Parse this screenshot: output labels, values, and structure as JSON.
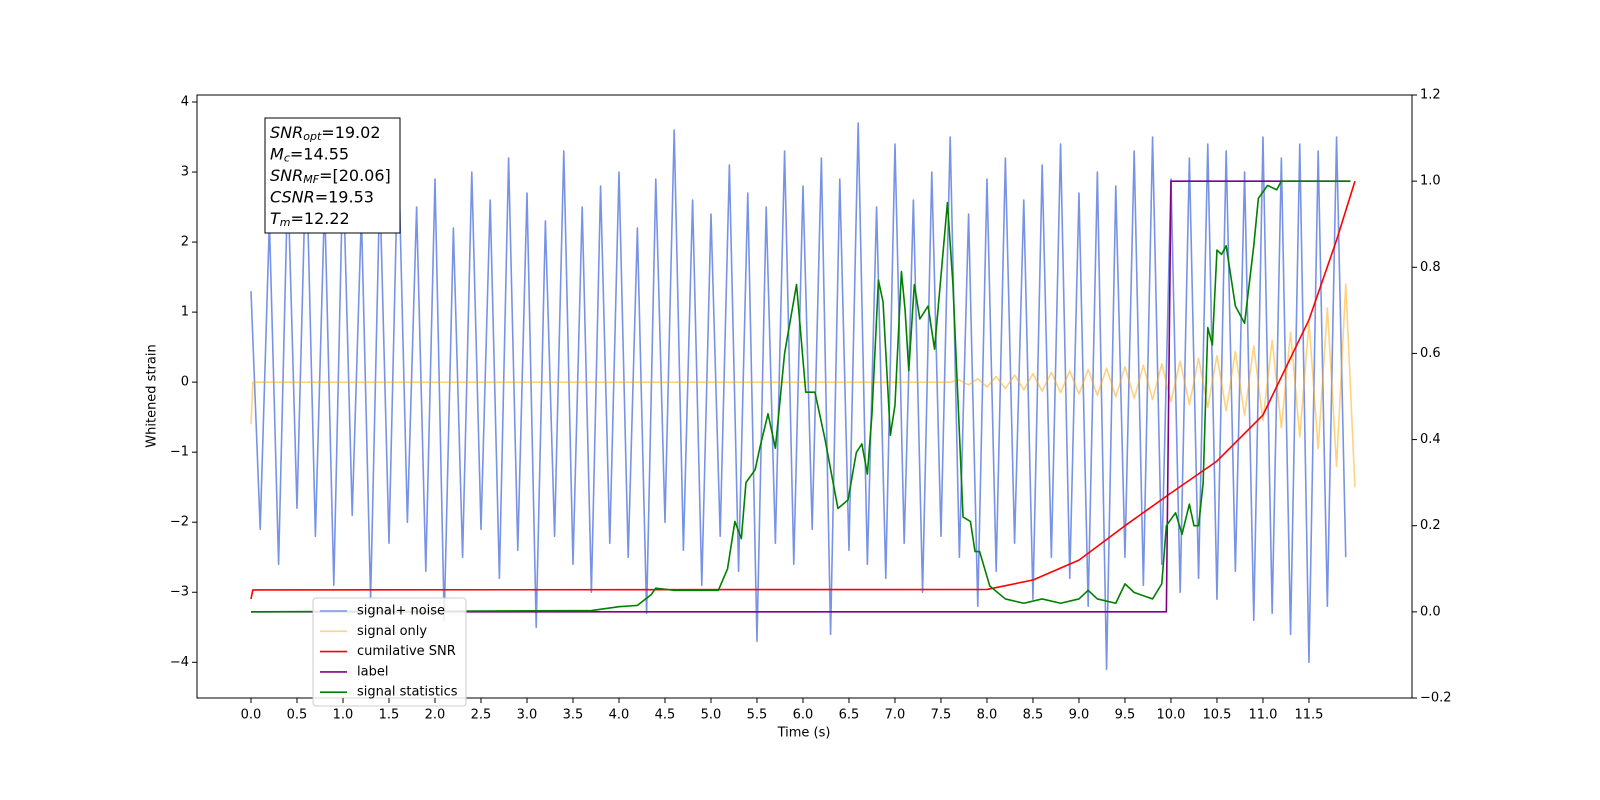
{
  "chart_data": {
    "type": "line",
    "x_label": "Time (s)",
    "y_label": "Whitened strain",
    "xlim": [
      -0.587,
      12.62
    ],
    "ylim": [
      -4.51,
      4.1
    ],
    "y2lim": [
      -0.2,
      1.2
    ],
    "xticks": [
      {
        "value": 0.0,
        "label": "0.0"
      },
      0.5,
      {
        "value": 1.0,
        "label": "1.0"
      },
      1.5,
      {
        "value": 2.0,
        "label": "2.0"
      },
      2.5,
      {
        "value": 3.0,
        "label": "3.0"
      },
      3.5,
      {
        "value": 4.0,
        "label": "4.0"
      },
      4.5,
      {
        "value": 5.0,
        "label": "5.0"
      },
      5.5,
      {
        "value": 6.0,
        "label": "6.0"
      },
      6.5,
      {
        "value": 7.0,
        "label": "7.0"
      },
      7.5,
      {
        "value": 8.0,
        "label": "8.0"
      },
      8.5,
      {
        "value": 9.0,
        "label": "9.0"
      },
      9.5,
      {
        "value": 10.0,
        "label": "10.0"
      },
      10.5,
      {
        "value": 11.0,
        "label": "11.0"
      },
      11.5
    ],
    "yticks": [
      {
        "value": -4,
        "label": "−4"
      },
      {
        "value": -3,
        "label": "−3"
      },
      {
        "value": -2,
        "label": "−2"
      },
      {
        "value": -1,
        "label": "−1"
      },
      0,
      1,
      2,
      3,
      4
    ],
    "y2ticks": [
      {
        "value": -0.2,
        "label": "−0.2"
      },
      {
        "value": 0.0,
        "label": "0.0"
      },
      0.2,
      0.4,
      0.6,
      0.8,
      {
        "value": 1.0,
        "label": "1.0"
      },
      1.2
    ],
    "annotations": [
      {
        "text": "SNR",
        "sub": "opt",
        "value": "=19.02"
      },
      {
        "text": "M",
        "sub": "c",
        "value": "=14.55"
      },
      {
        "text": "SNR",
        "sub": "MF",
        "value": "=[20.06]"
      },
      {
        "text": "CSNR",
        "sub": "",
        "value": "=19.53"
      },
      {
        "text": "T",
        "sub": "m",
        "value": "=12.22"
      }
    ],
    "series": [
      {
        "name": "signal+ noise",
        "color": "#7893e6",
        "x": [
          0.0,
          0.1,
          0.2,
          0.3,
          0.4,
          0.5,
          0.6,
          0.7,
          0.8,
          0.9,
          1.0,
          1.1,
          1.2,
          1.3,
          1.4,
          1.5,
          1.6,
          1.7,
          1.8,
          1.9,
          2.0,
          2.1,
          2.2,
          2.3,
          2.4,
          2.5,
          2.6,
          2.7,
          2.8,
          2.9,
          3.0,
          3.1,
          3.2,
          3.3,
          3.4,
          3.5,
          3.6,
          3.7,
          3.8,
          3.9,
          4.0,
          4.1,
          4.2,
          4.3,
          4.4,
          4.5,
          4.6,
          4.7,
          4.8,
          4.9,
          5.0,
          5.1,
          5.2,
          5.3,
          5.4,
          5.5,
          5.6,
          5.7,
          5.8,
          5.9,
          6.0,
          6.1,
          6.2,
          6.3,
          6.4,
          6.5,
          6.6,
          6.7,
          6.8,
          6.9,
          7.0,
          7.1,
          7.2,
          7.3,
          7.4,
          7.5,
          7.6,
          7.7,
          7.8,
          7.9,
          8.0,
          8.1,
          8.2,
          8.3,
          8.4,
          8.5,
          8.6,
          8.7,
          8.8,
          8.9,
          9.0,
          9.1,
          9.2,
          9.3,
          9.4,
          9.5,
          9.6,
          9.7,
          9.8,
          9.9,
          10.0,
          10.1,
          10.2,
          10.3,
          10.4,
          10.5,
          10.6,
          10.7,
          10.8,
          10.9,
          11.0,
          11.1,
          11.2,
          11.3,
          11.4,
          11.5,
          11.6,
          11.7,
          11.8,
          11.9
        ],
        "values": [
          1.3,
          -2.1,
          2.3,
          -2.6,
          2.9,
          -1.8,
          3.3,
          -2.2,
          2.6,
          -2.9,
          3.1,
          -1.9,
          2.4,
          -3.1,
          2.8,
          -2.3,
          3.4,
          -2.0,
          2.5,
          -2.7,
          2.9,
          -3.4,
          2.2,
          -2.5,
          3.0,
          -2.1,
          2.6,
          -2.8,
          3.2,
          -2.4,
          2.7,
          -3.5,
          2.3,
          -2.2,
          3.3,
          -2.6,
          2.5,
          -3.0,
          2.8,
          -2.3,
          3.0,
          -2.5,
          2.2,
          -3.3,
          2.9,
          -2.0,
          3.6,
          -2.4,
          2.6,
          -2.9,
          2.4,
          -2.2,
          3.1,
          -2.7,
          2.7,
          -3.7,
          2.5,
          -2.3,
          3.3,
          -2.6,
          2.8,
          -2.1,
          3.2,
          -3.6,
          2.9,
          -2.4,
          3.7,
          -2.6,
          2.5,
          -2.8,
          3.4,
          -2.3,
          2.6,
          -3.0,
          3.0,
          -2.2,
          3.5,
          -2.5,
          2.4,
          -3.2,
          2.9,
          -2.7,
          3.2,
          -2.3,
          2.6,
          -3.1,
          3.1,
          -2.5,
          3.4,
          -2.8,
          2.7,
          -3.2,
          3.0,
          -4.1,
          2.8,
          -2.5,
          3.3,
          -2.9,
          3.5,
          -2.6,
          2.9,
          -3.0,
          3.2,
          -2.8,
          3.4,
          -3.1,
          3.3,
          -2.7,
          3.0,
          -3.4,
          3.5,
          -3.3,
          3.2,
          -3.6,
          3.4,
          -4.0,
          3.3,
          -3.2,
          3.5,
          -2.5
        ]
      },
      {
        "name": "signal only",
        "color": "#ffa500",
        "x": [
          0.0,
          0.02,
          7.6,
          7.7,
          7.8,
          7.9,
          8.0,
          8.1,
          8.2,
          8.3,
          8.4,
          8.5,
          8.6,
          8.7,
          8.8,
          8.9,
          9.0,
          9.1,
          9.2,
          9.3,
          9.4,
          9.5,
          9.6,
          9.7,
          9.8,
          9.9,
          10.0,
          10.1,
          10.2,
          10.3,
          10.4,
          10.5,
          10.6,
          10.7,
          10.8,
          10.9,
          11.0,
          11.1,
          11.2,
          11.3,
          11.4,
          11.5,
          11.6,
          11.7,
          11.8,
          11.9,
          12.0
        ],
        "values": [
          -0.6,
          0,
          0,
          0.03,
          -0.04,
          0.05,
          -0.07,
          0.08,
          -0.09,
          0.1,
          -0.11,
          0.12,
          -0.13,
          0.14,
          -0.15,
          0.16,
          -0.17,
          0.18,
          -0.19,
          0.2,
          -0.21,
          0.22,
          -0.23,
          0.24,
          -0.25,
          0.26,
          -0.28,
          0.3,
          -0.32,
          0.34,
          -0.36,
          0.38,
          -0.41,
          0.44,
          -0.48,
          0.52,
          -0.55,
          0.6,
          -0.65,
          0.71,
          -0.78,
          0.85,
          -0.95,
          1.06,
          -1.2,
          1.4,
          -1.5
        ]
      },
      {
        "name": "cumilative SNR",
        "color": "#ff0000",
        "axis": "y2",
        "x": [
          0.0,
          0.02,
          8.0,
          8.5,
          9.0,
          9.5,
          10.0,
          10.5,
          11.0,
          11.5,
          11.8,
          12.0
        ],
        "values": [
          0.03,
          0.051,
          0.052,
          0.074,
          0.12,
          0.2,
          0.276,
          0.35,
          0.457,
          0.678,
          0.863,
          1.0
        ]
      },
      {
        "name": "label",
        "color": "#800080",
        "axis": "y2",
        "x": [
          0.0,
          9.95,
          10.0,
          11.95
        ],
        "values": [
          0,
          0,
          1,
          1
        ]
      },
      {
        "name": "signal statistics",
        "color": "#008000",
        "axis": "y2",
        "x": [
          0.0,
          3.7,
          4.0,
          4.2,
          4.35,
          4.4,
          4.6,
          4.88,
          5.08,
          5.18,
          5.26,
          5.33,
          5.38,
          5.48,
          5.53,
          5.62,
          5.7,
          5.8,
          5.93,
          6.03,
          6.13,
          6.24,
          6.38,
          6.49,
          6.58,
          6.64,
          6.7,
          6.75,
          6.82,
          6.87,
          6.95,
          7.0,
          7.07,
          7.11,
          7.15,
          7.21,
          7.27,
          7.36,
          7.43,
          7.57,
          7.63,
          7.74,
          7.82,
          7.87,
          7.92,
          8.03,
          8.2,
          8.4,
          8.6,
          8.8,
          9.0,
          9.1,
          9.2,
          9.4,
          9.5,
          9.6,
          9.8,
          9.9,
          9.95,
          10.05,
          10.12,
          10.2,
          10.25,
          10.3,
          10.35,
          10.4,
          10.45,
          10.5,
          10.55,
          10.6,
          10.7,
          10.8,
          10.9,
          10.95,
          11.05,
          11.15,
          11.2,
          11.95
        ],
        "values": [
          0,
          0.003,
          0.012,
          0.015,
          0.04,
          0.055,
          0.05,
          0.05,
          0.05,
          0.1,
          0.21,
          0.17,
          0.3,
          0.33,
          0.38,
          0.46,
          0.38,
          0.6,
          0.76,
          0.51,
          0.51,
          0.4,
          0.24,
          0.26,
          0.37,
          0.39,
          0.32,
          0.46,
          0.77,
          0.72,
          0.41,
          0.48,
          0.79,
          0.7,
          0.56,
          0.76,
          0.68,
          0.71,
          0.61,
          0.95,
          0.76,
          0.22,
          0.21,
          0.14,
          0.14,
          0.06,
          0.03,
          0.02,
          0.03,
          0.02,
          0.03,
          0.05,
          0.03,
          0.02,
          0.065,
          0.045,
          0.03,
          0.065,
          0.2,
          0.23,
          0.18,
          0.25,
          0.2,
          0.2,
          0.3,
          0.66,
          0.62,
          0.84,
          0.83,
          0.85,
          0.71,
          0.67,
          0.85,
          0.96,
          0.99,
          0.98,
          1.0,
          1.0
        ]
      }
    ]
  }
}
